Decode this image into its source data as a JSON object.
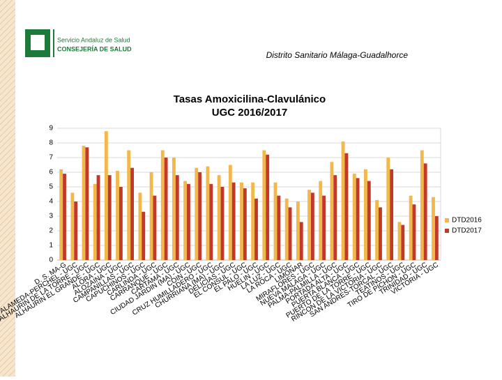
{
  "header": {
    "org": "Servicio Andaluz de Salud",
    "dept": "CONSEJERÍA DE SALUD",
    "district": "Distrito Sanitario Málaga-Guadalhorce"
  },
  "chart_data": {
    "type": "bar",
    "title": [
      "Tasas Amoxicilina-Clavulánico",
      "UGC   2016/2017"
    ],
    "categories": [
      "D. S. MA-G",
      "ALAMEDA-PERCHEL - UGC",
      "ALHAURIN DE LA TORRE - UGC",
      "ALHAURIN EL GRANDE - UGC",
      "ALORA - UGC",
      "ALOZAINA - UGC",
      "CAMPANILLAS - UGC",
      "CAPUCHINOS - UGC",
      "CARLINDA - UGC",
      "CARRANQUE - UGC",
      "CARTAMA - UGC",
      "CIUDAD JARDIN (MA) - UGC",
      "COIN - UGC",
      "CRUZ HUMILLADERO - UGC",
      "CHURRIANA (MA) - UGC",
      "DELICIAS - UGC",
      "EL CONSUL - UGC",
      "EL PALO - UGC",
      "HUELIN - UGC",
      "LA LUZ - UGC",
      "LA ROCA - UGC",
      "LIMONAR",
      "MIRAFLORES - UGC",
      "NUEVA MALAGA - UGC",
      "PALMA-PALMILLA - UGC",
      "PORTADA ALTA - UGC",
      "PUERTA BLANCA - UGC",
      "PUERTO DE LA TORRE - UGC",
      "RINCON DE LA VICTORIA - UGC",
      "SAN ANDRES-TORCAL - UGC",
      "TEATINOS - UGC",
      "TIRO DE PICHON - UGC",
      "TRINIDAD - UGC",
      "VICTORIA - UGC"
    ],
    "series": [
      {
        "name": "DTD2016",
        "color": "#f2b84b",
        "values": [
          6.2,
          4.6,
          7.8,
          5.2,
          8.8,
          6.1,
          7.5,
          4.6,
          6.0,
          7.5,
          7.0,
          5.4,
          6.3,
          6.4,
          5.8,
          6.5,
          5.3,
          5.3,
          7.5,
          5.3,
          4.2,
          4.0,
          4.8,
          5.4,
          6.7,
          8.1,
          5.9,
          6.2,
          4.1,
          7.0,
          2.6,
          4.4,
          7.5,
          4.3
        ]
      },
      {
        "name": "DTD2017",
        "color": "#c0392b",
        "values": [
          5.9,
          4.0,
          7.7,
          5.8,
          5.8,
          5.0,
          6.3,
          3.3,
          4.4,
          7.0,
          5.8,
          5.2,
          6.0,
          5.2,
          5.0,
          5.3,
          4.9,
          4.2,
          7.2,
          4.4,
          3.6,
          2.6,
          4.6,
          4.4,
          5.8,
          7.3,
          5.6,
          5.4,
          3.6,
          6.2,
          2.4,
          3.8,
          6.6,
          3.0
        ]
      }
    ],
    "ylim": [
      0,
      9
    ],
    "yticks": [
      0,
      1,
      2,
      3,
      4,
      5,
      6,
      7,
      8,
      9
    ],
    "grid": true,
    "legend": "right"
  }
}
